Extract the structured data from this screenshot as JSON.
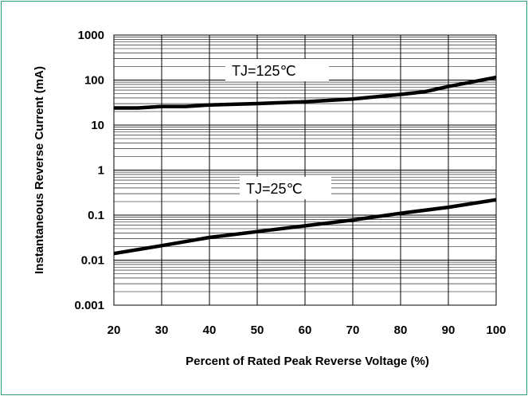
{
  "chart_data": {
    "type": "line",
    "xlabel": "Percent of Rated Peak Reverse Voltage (%)",
    "ylabel": "Instantaneous Reverse Current (mA)",
    "xlim": [
      20,
      100
    ],
    "ylim": [
      0.001,
      1000
    ],
    "y_scale": "log",
    "grid": true,
    "legend": "none",
    "x_ticks": [
      "20",
      "30",
      "40",
      "50",
      "60",
      "70",
      "80",
      "90",
      "100"
    ],
    "y_ticks": [
      "0.001",
      "0.01",
      "0.1",
      "1",
      "10",
      "100",
      "1000"
    ],
    "series": [
      {
        "name": "TJ=125℃",
        "x": [
          20,
          25,
          30,
          35,
          40,
          50,
          60,
          70,
          80,
          85,
          90,
          100
        ],
        "y": [
          24,
          24,
          26,
          26,
          28,
          30,
          33,
          38,
          48,
          55,
          72,
          115
        ]
      },
      {
        "name": "TJ=25℃",
        "x": [
          20,
          30,
          40,
          50,
          60,
          70,
          80,
          90,
          100
        ],
        "y": [
          0.014,
          0.021,
          0.032,
          0.043,
          0.058,
          0.078,
          0.11,
          0.15,
          0.22
        ]
      }
    ],
    "annotations": [
      "TJ=125℃",
      "TJ=25℃"
    ]
  }
}
